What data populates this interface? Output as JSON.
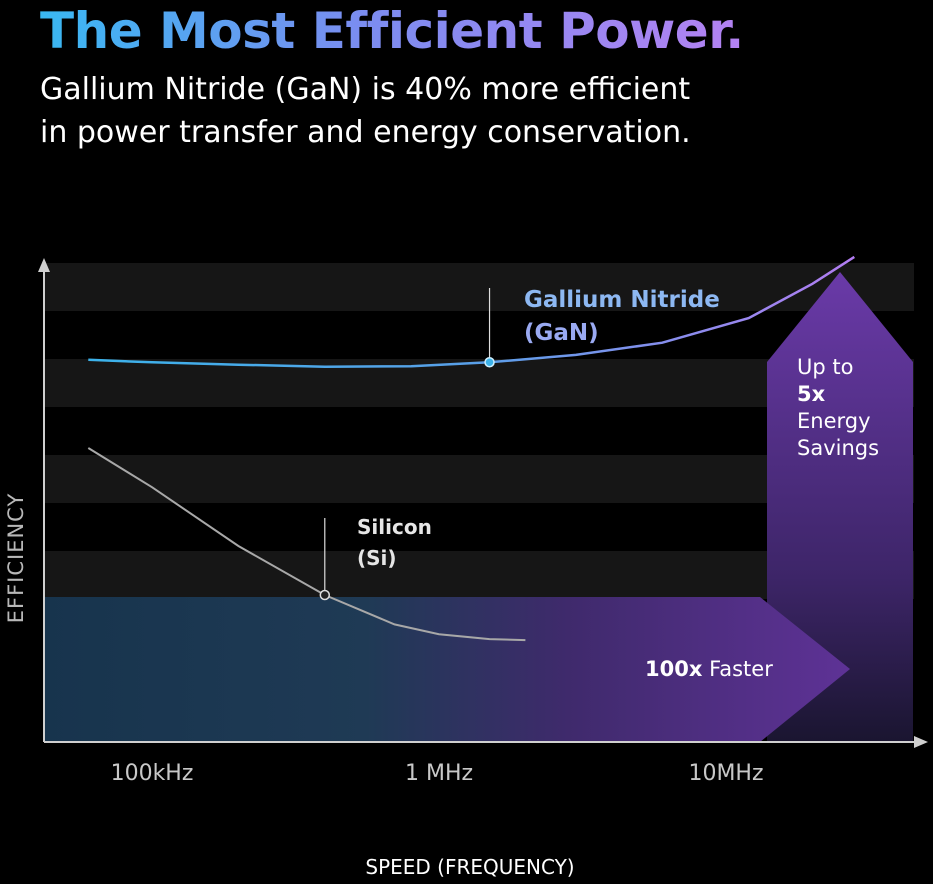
{
  "header": {
    "title": "The Most Efficient Power.",
    "subtitle_line1": "Gallium Nitride (GaN) is 40% more efficient",
    "subtitle_line2": "in power transfer and energy conservation."
  },
  "colors": {
    "gan": "#3cb2ea",
    "gan_end": "#b57cf2",
    "silicon": "#a8a8a8",
    "arrow_purple": "#5e3296",
    "band_blue": "#1f3a55"
  },
  "chart_data": {
    "type": "line",
    "xlabel": "SPEED (FREQUENCY)",
    "ylabel": "EFFICIENCY",
    "x_scale": "log",
    "x_ticks": [
      {
        "value": 100000,
        "label": "100kHz"
      },
      {
        "value": 1000000,
        "label": "1 MHz"
      },
      {
        "value": 10000000,
        "label": "10MHz"
      }
    ],
    "grid": "horizontal bands",
    "series": [
      {
        "name_line1": "Gallium Nitride",
        "name_line2": "(GaN)",
        "x": [
          60000,
          100000,
          200000,
          400000,
          800000,
          1500000,
          3000000,
          6000000,
          12000000,
          20000000,
          28000000
        ],
        "y": [
          0.78,
          0.775,
          0.77,
          0.766,
          0.767,
          0.775,
          0.79,
          0.815,
          0.865,
          0.935,
          0.99
        ],
        "marker": {
          "x": 1500000,
          "y": 0.775
        }
      },
      {
        "name_line1": "Silicon",
        "name_line2": "(Si)",
        "x": [
          60000,
          100000,
          200000,
          400000,
          700000,
          1000000,
          1500000,
          2000000
        ],
        "y": [
          0.6,
          0.52,
          0.4,
          0.3,
          0.24,
          0.22,
          0.21,
          0.208
        ],
        "marker": {
          "x": 400000,
          "y": 0.3
        }
      }
    ],
    "annotations": {
      "speed_bold": "100x",
      "speed_text": "Faster",
      "savings_line1": "Up to",
      "savings_bold": "5x",
      "savings_line3": "Energy",
      "savings_line4": "Savings"
    }
  }
}
